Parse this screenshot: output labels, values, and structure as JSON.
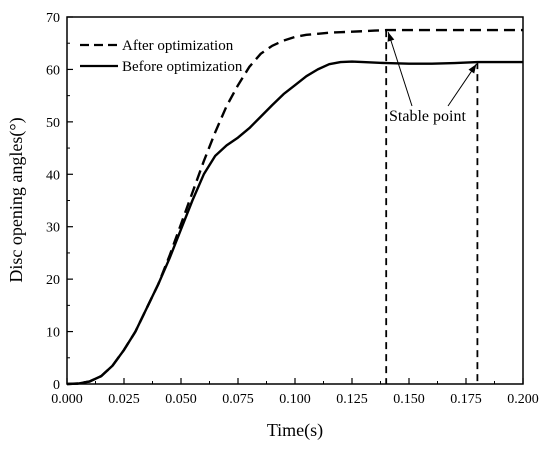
{
  "chart_data": {
    "type": "line",
    "xlabel": "Time(s)",
    "ylabel": "Disc opening angles(°)",
    "xlim": [
      0,
      0.2
    ],
    "ylim": [
      0,
      70
    ],
    "xticks": [
      "0.000",
      "0.025",
      "0.050",
      "0.075",
      "0.100",
      "0.125",
      "0.150",
      "0.175",
      "0.200"
    ],
    "yticks": [
      "0",
      "10",
      "20",
      "30",
      "40",
      "50",
      "60",
      "70"
    ],
    "grid": false,
    "legend": "top-left",
    "series": [
      {
        "name": "After optimization",
        "style": "dashed",
        "x": [
          0,
          0.005,
          0.01,
          0.015,
          0.02,
          0.025,
          0.03,
          0.035,
          0.04,
          0.045,
          0.05,
          0.055,
          0.06,
          0.065,
          0.07,
          0.075,
          0.08,
          0.085,
          0.09,
          0.095,
          0.1,
          0.105,
          0.11,
          0.115,
          0.12,
          0.125,
          0.13,
          0.135,
          0.14,
          0.15,
          0.16,
          0.17,
          0.18,
          0.19,
          0.2
        ],
        "y": [
          0,
          0.1,
          0.5,
          1.5,
          3.5,
          6.5,
          10.0,
          14.5,
          19.0,
          24.5,
          30.5,
          36.5,
          42.5,
          48.0,
          53.0,
          57.0,
          60.5,
          63.0,
          64.5,
          65.5,
          66.2,
          66.6,
          66.8,
          67.0,
          67.1,
          67.2,
          67.3,
          67.4,
          67.5,
          67.5,
          67.5,
          67.5,
          67.5,
          67.5,
          67.5
        ]
      },
      {
        "name": "Before optimization",
        "style": "solid",
        "x": [
          0,
          0.005,
          0.01,
          0.015,
          0.02,
          0.025,
          0.03,
          0.035,
          0.04,
          0.045,
          0.05,
          0.055,
          0.06,
          0.065,
          0.07,
          0.075,
          0.08,
          0.085,
          0.09,
          0.095,
          0.1,
          0.105,
          0.11,
          0.115,
          0.12,
          0.125,
          0.13,
          0.14,
          0.15,
          0.16,
          0.17,
          0.175,
          0.18,
          0.19,
          0.2
        ],
        "y": [
          0,
          0.1,
          0.5,
          1.5,
          3.5,
          6.5,
          10.0,
          14.5,
          19.0,
          24.0,
          29.5,
          35.0,
          40.0,
          43.5,
          45.5,
          47.0,
          48.8,
          51.0,
          53.2,
          55.3,
          57.0,
          58.7,
          60.0,
          61.0,
          61.4,
          61.5,
          61.4,
          61.2,
          61.1,
          61.1,
          61.2,
          61.3,
          61.4,
          61.4,
          61.4
        ]
      }
    ],
    "annotations": [
      {
        "text": "Stable point",
        "points": [
          [
            0.14,
            67.5
          ],
          [
            0.18,
            61.4
          ]
        ]
      }
    ]
  }
}
